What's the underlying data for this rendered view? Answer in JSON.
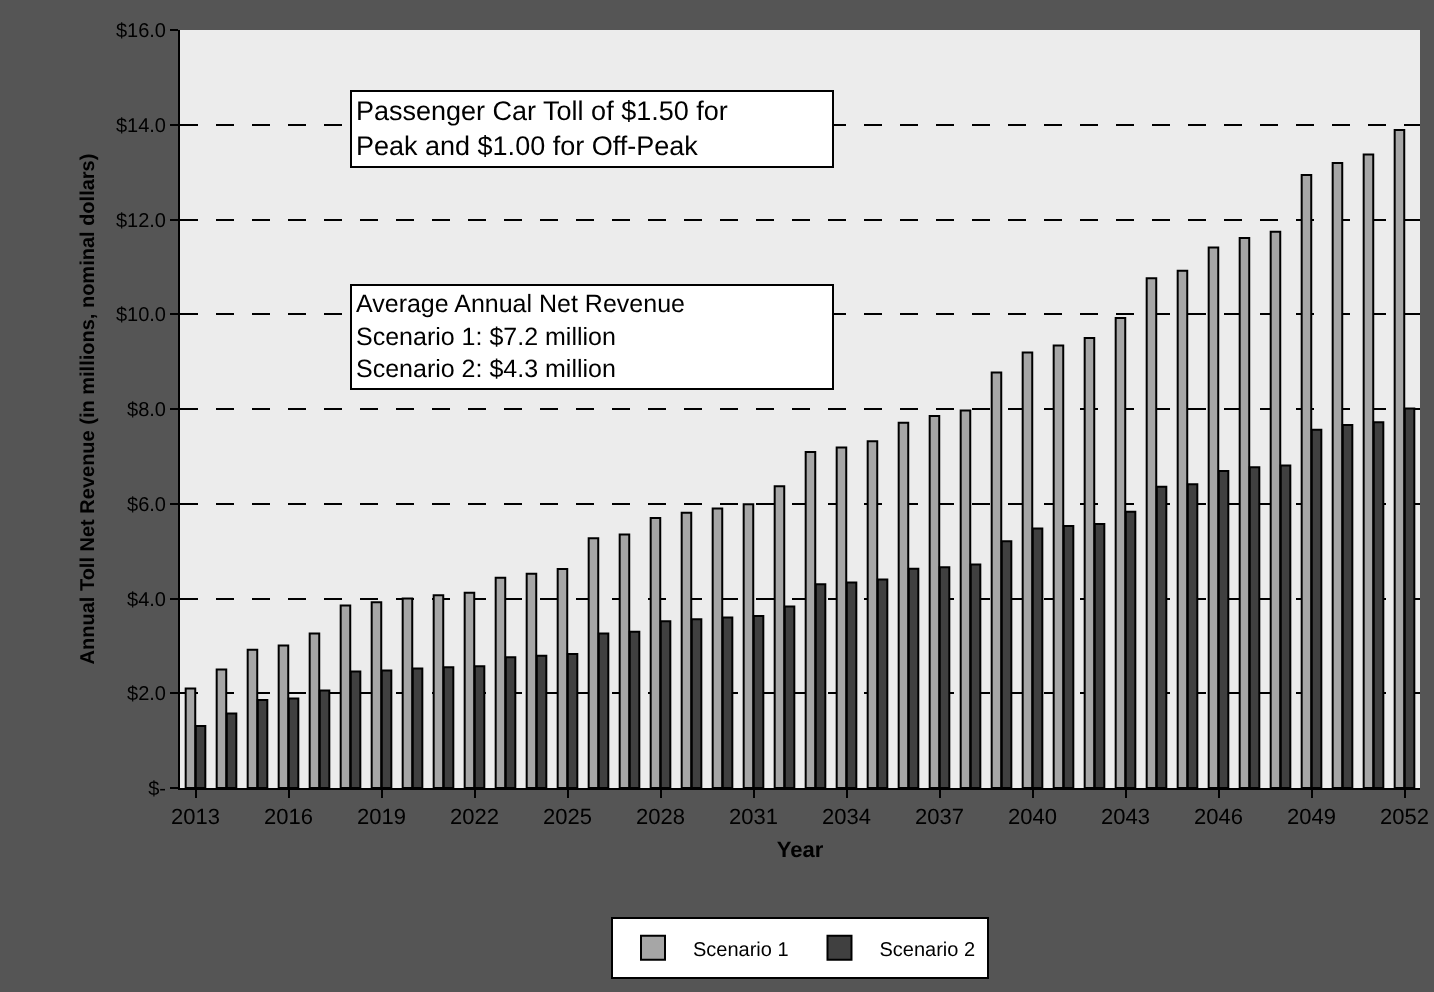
{
  "chart_data": {
    "type": "bar",
    "xlabel": "Year",
    "ylabel": "Annual Toll Net Revenue (in millions, nominal dollars)",
    "categories": [
      "2013",
      null,
      null,
      "2016",
      null,
      null,
      "2019",
      null,
      null,
      "2022",
      null,
      null,
      "2025",
      null,
      null,
      "2028",
      null,
      null,
      "2031",
      null,
      null,
      "2034",
      null,
      null,
      "2037",
      null,
      null,
      "2040",
      null,
      null,
      "2043",
      null,
      null,
      "2046",
      null,
      null,
      "2049",
      null,
      null,
      "2052"
    ],
    "series": [
      {
        "name": "Scenario 1",
        "color": "#a6a6a6",
        "values": [
          2.1,
          2.5,
          2.92,
          3.01,
          3.26,
          3.85,
          3.92,
          4.0,
          4.07,
          4.12,
          4.44,
          4.52,
          4.62,
          5.27,
          5.35,
          5.7,
          5.81,
          5.9,
          5.99,
          6.37,
          7.09,
          7.19,
          7.32,
          7.71,
          7.85,
          7.97,
          8.77,
          9.19,
          9.34,
          9.5,
          9.92,
          10.76,
          10.92,
          11.41,
          11.61,
          11.74,
          12.94,
          13.19,
          13.37,
          13.89
        ]
      },
      {
        "name": "Scenario 2",
        "color": "#404040",
        "values": [
          1.31,
          1.57,
          1.86,
          1.89,
          2.06,
          2.46,
          2.48,
          2.52,
          2.55,
          2.57,
          2.76,
          2.79,
          2.83,
          3.26,
          3.3,
          3.52,
          3.56,
          3.6,
          3.63,
          3.83,
          4.3,
          4.34,
          4.4,
          4.63,
          4.66,
          4.72,
          5.21,
          5.48,
          5.53,
          5.57,
          5.83,
          6.36,
          6.41,
          6.69,
          6.77,
          6.81,
          7.56,
          7.66,
          7.72,
          8.01
        ]
      }
    ],
    "ylim": [
      0,
      16
    ],
    "yticks": [
      {
        "value": 0,
        "label": "$-"
      },
      {
        "value": 2,
        "label": "$2.0"
      },
      {
        "value": 4,
        "label": "$4.0"
      },
      {
        "value": 6,
        "label": "$6.0"
      },
      {
        "value": 8,
        "label": "$8.0"
      },
      {
        "value": 10,
        "label": "$10.0"
      },
      {
        "value": 12,
        "label": "$12.0"
      },
      {
        "value": 14,
        "label": "$14.0"
      },
      {
        "value": 16,
        "label": "$16.0"
      }
    ],
    "grid": "y",
    "legend": "bottom",
    "annotations": [
      "Passenger Car Toll of $1.50 for\nPeak and $1.00 for Off-Peak",
      "Average Annual Net Revenue\nScenario 1: $7.2 million\nScenario 2: $4.3 million"
    ]
  }
}
